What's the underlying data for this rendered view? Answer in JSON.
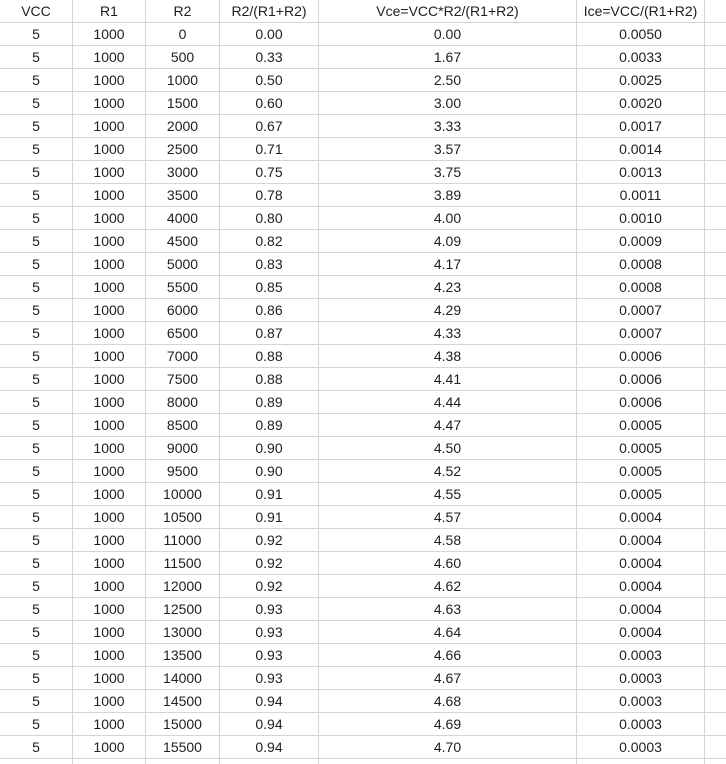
{
  "table": {
    "columns": [
      "VCC",
      "R1",
      "R2",
      "R2/(R1+R2)",
      "Vce=VCC*R2/(R1+R2)",
      "Ice=VCC/(R1+R2)"
    ],
    "rows": [
      [
        "5",
        "1000",
        "0",
        "0.00",
        "0.00",
        "0.0050"
      ],
      [
        "5",
        "1000",
        "500",
        "0.33",
        "1.67",
        "0.0033"
      ],
      [
        "5",
        "1000",
        "1000",
        "0.50",
        "2.50",
        "0.0025"
      ],
      [
        "5",
        "1000",
        "1500",
        "0.60",
        "3.00",
        "0.0020"
      ],
      [
        "5",
        "1000",
        "2000",
        "0.67",
        "3.33",
        "0.0017"
      ],
      [
        "5",
        "1000",
        "2500",
        "0.71",
        "3.57",
        "0.0014"
      ],
      [
        "5",
        "1000",
        "3000",
        "0.75",
        "3.75",
        "0.0013"
      ],
      [
        "5",
        "1000",
        "3500",
        "0.78",
        "3.89",
        "0.0011"
      ],
      [
        "5",
        "1000",
        "4000",
        "0.80",
        "4.00",
        "0.0010"
      ],
      [
        "5",
        "1000",
        "4500",
        "0.82",
        "4.09",
        "0.0009"
      ],
      [
        "5",
        "1000",
        "5000",
        "0.83",
        "4.17",
        "0.0008"
      ],
      [
        "5",
        "1000",
        "5500",
        "0.85",
        "4.23",
        "0.0008"
      ],
      [
        "5",
        "1000",
        "6000",
        "0.86",
        "4.29",
        "0.0007"
      ],
      [
        "5",
        "1000",
        "6500",
        "0.87",
        "4.33",
        "0.0007"
      ],
      [
        "5",
        "1000",
        "7000",
        "0.88",
        "4.38",
        "0.0006"
      ],
      [
        "5",
        "1000",
        "7500",
        "0.88",
        "4.41",
        "0.0006"
      ],
      [
        "5",
        "1000",
        "8000",
        "0.89",
        "4.44",
        "0.0006"
      ],
      [
        "5",
        "1000",
        "8500",
        "0.89",
        "4.47",
        "0.0005"
      ],
      [
        "5",
        "1000",
        "9000",
        "0.90",
        "4.50",
        "0.0005"
      ],
      [
        "5",
        "1000",
        "9500",
        "0.90",
        "4.52",
        "0.0005"
      ],
      [
        "5",
        "1000",
        "10000",
        "0.91",
        "4.55",
        "0.0005"
      ],
      [
        "5",
        "1000",
        "10500",
        "0.91",
        "4.57",
        "0.0004"
      ],
      [
        "5",
        "1000",
        "11000",
        "0.92",
        "4.58",
        "0.0004"
      ],
      [
        "5",
        "1000",
        "11500",
        "0.92",
        "4.60",
        "0.0004"
      ],
      [
        "5",
        "1000",
        "12000",
        "0.92",
        "4.62",
        "0.0004"
      ],
      [
        "5",
        "1000",
        "12500",
        "0.93",
        "4.63",
        "0.0004"
      ],
      [
        "5",
        "1000",
        "13000",
        "0.93",
        "4.64",
        "0.0004"
      ],
      [
        "5",
        "1000",
        "13500",
        "0.93",
        "4.66",
        "0.0003"
      ],
      [
        "5",
        "1000",
        "14000",
        "0.93",
        "4.67",
        "0.0003"
      ],
      [
        "5",
        "1000",
        "14500",
        "0.94",
        "4.68",
        "0.0003"
      ],
      [
        "5",
        "1000",
        "15000",
        "0.94",
        "4.69",
        "0.0003"
      ],
      [
        "5",
        "1000",
        "15500",
        "0.94",
        "4.70",
        "0.0003"
      ]
    ]
  },
  "colors": {
    "grid_line": "#d5d5d5",
    "text": "#1e1e1e",
    "background": "#ffffff"
  }
}
